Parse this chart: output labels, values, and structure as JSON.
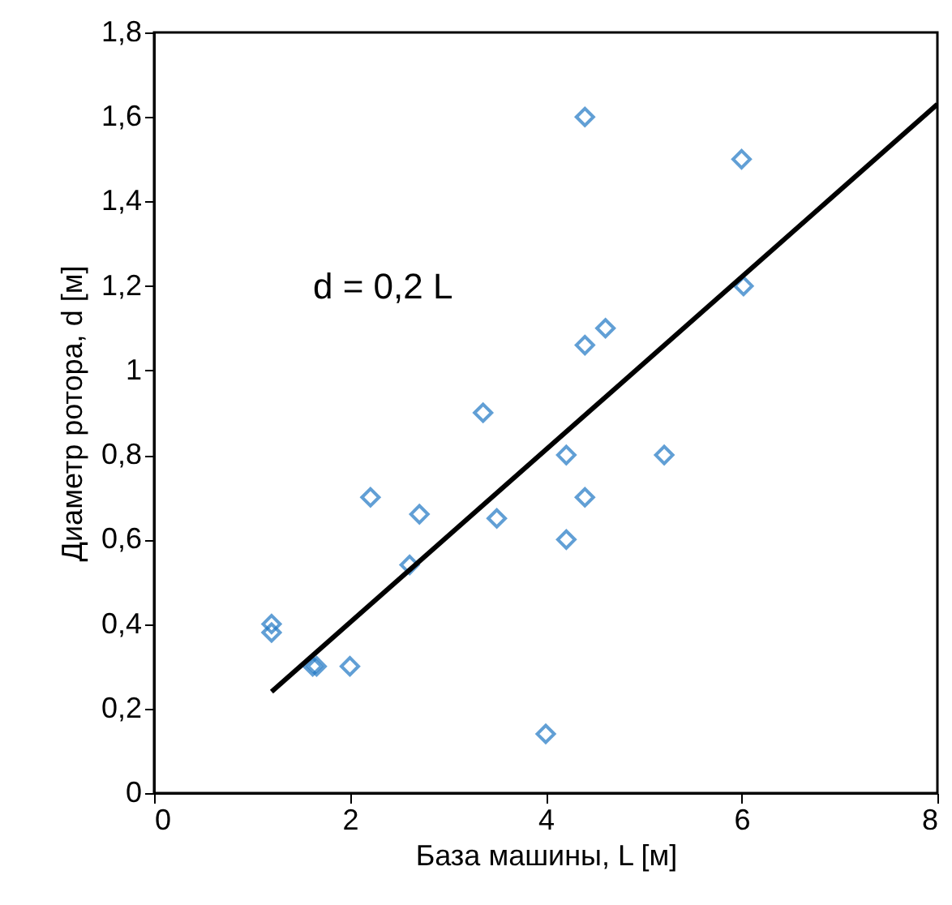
{
  "chart_data": {
    "type": "scatter",
    "xlabel": "База машины, L [м]",
    "ylabel": "Диаметр ротора, d [м]",
    "annotations": [
      "d = 0,2 L"
    ],
    "xlim": [
      0,
      8
    ],
    "ylim": [
      0,
      1.8
    ],
    "xticks": [
      0,
      2,
      4,
      6,
      8
    ],
    "yticks": [
      0,
      {
        "value": 0.2,
        "label": "0,2"
      },
      {
        "value": 0.4,
        "label": "0,4"
      },
      {
        "value": 0.6,
        "label": "0,6"
      },
      {
        "value": 0.8,
        "label": "0,8"
      },
      1,
      {
        "value": 1.2,
        "label": "1,2"
      },
      {
        "value": 1.4,
        "label": "1,4"
      },
      {
        "value": 1.6,
        "label": "1,6"
      },
      {
        "value": 1.8,
        "label": "1,8"
      }
    ],
    "grid": false,
    "series": [
      {
        "marker": "diamond",
        "color": "#1f77c4",
        "x": [
          4.4,
          6.0,
          6.02,
          4.61,
          4.4,
          3.36,
          4.21,
          5.21,
          4.4,
          2.21,
          2.71,
          3.5,
          4.21,
          2.61,
          1.2,
          1.2,
          1.62,
          1.66,
          2.0,
          4.0
        ],
        "values": [
          1.6,
          1.5,
          1.2,
          1.1,
          1.06,
          0.9,
          0.8,
          0.8,
          0.7,
          0.7,
          0.66,
          0.65,
          0.6,
          0.54,
          0.4,
          0.38,
          0.3,
          0.3,
          0.3,
          0.14
        ]
      },
      {
        "type": "line",
        "color": "#000000",
        "x": [
          1.2,
          8
        ],
        "values": [
          0.24,
          1.63
        ]
      }
    ]
  }
}
